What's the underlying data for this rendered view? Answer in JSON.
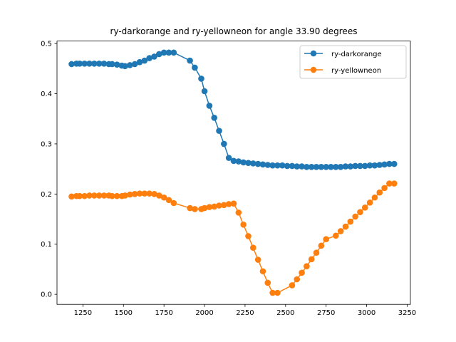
{
  "chart_data": {
    "type": "line",
    "title": "ry-darkorange and ry-yellowneon for angle 33.90 degrees",
    "xlabel": "",
    "ylabel": "",
    "xlim": [
      1090,
      3270
    ],
    "ylim": [
      -0.02,
      0.505
    ],
    "xticks": [
      1250,
      1500,
      1750,
      2000,
      2250,
      2500,
      2750,
      3000,
      3250
    ],
    "yticks": [
      0.0,
      0.1,
      0.2,
      0.3,
      0.4,
      0.5
    ],
    "grid": false,
    "legend": "top-right",
    "series": [
      {
        "name": "ry-darkorange",
        "color": "#1f77b4",
        "x": [
          1180,
          1210,
          1230,
          1260,
          1290,
          1320,
          1350,
          1380,
          1410,
          1430,
          1460,
          1490,
          1510,
          1540,
          1570,
          1600,
          1630,
          1660,
          1690,
          1720,
          1750,
          1780,
          1810,
          1910,
          1940,
          1980,
          2000,
          2030,
          2060,
          2090,
          2120,
          2150,
          2180,
          2210,
          2240,
          2270,
          2300,
          2330,
          2360,
          2390,
          2420,
          2450,
          2480,
          2510,
          2540,
          2570,
          2600,
          2630,
          2660,
          2690,
          2720,
          2750,
          2780,
          2810,
          2840,
          2870,
          2900,
          2930,
          2960,
          2990,
          3020,
          3050,
          3080,
          3110,
          3140,
          3170
        ],
        "y": [
          0.459,
          0.46,
          0.46,
          0.46,
          0.46,
          0.46,
          0.46,
          0.46,
          0.459,
          0.459,
          0.458,
          0.456,
          0.455,
          0.457,
          0.459,
          0.463,
          0.466,
          0.471,
          0.474,
          0.479,
          0.482,
          0.482,
          0.482,
          0.466,
          0.452,
          0.43,
          0.405,
          0.376,
          0.352,
          0.326,
          0.3,
          0.272,
          0.266,
          0.265,
          0.263,
          0.262,
          0.261,
          0.26,
          0.259,
          0.258,
          0.257,
          0.257,
          0.257,
          0.256,
          0.256,
          0.255,
          0.255,
          0.254,
          0.254,
          0.254,
          0.254,
          0.254,
          0.254,
          0.254,
          0.254,
          0.255,
          0.255,
          0.256,
          0.256,
          0.256,
          0.257,
          0.257,
          0.258,
          0.259,
          0.26,
          0.26
        ]
      },
      {
        "name": "ry-yellowneon",
        "color": "#ff7f0e",
        "x": [
          1180,
          1210,
          1230,
          1260,
          1290,
          1320,
          1350,
          1380,
          1410,
          1430,
          1460,
          1490,
          1510,
          1540,
          1570,
          1600,
          1630,
          1660,
          1690,
          1720,
          1750,
          1780,
          1810,
          1910,
          1940,
          1980,
          2000,
          2030,
          2060,
          2090,
          2120,
          2150,
          2180,
          2210,
          2240,
          2270,
          2300,
          2330,
          2360,
          2390,
          2420,
          2450,
          2540,
          2570,
          2600,
          2630,
          2660,
          2690,
          2720,
          2750,
          2810,
          2840,
          2870,
          2900,
          2930,
          2960,
          2990,
          3020,
          3050,
          3080,
          3110,
          3140,
          3170
        ],
        "y": [
          0.195,
          0.196,
          0.196,
          0.196,
          0.197,
          0.197,
          0.197,
          0.197,
          0.197,
          0.196,
          0.196,
          0.196,
          0.197,
          0.199,
          0.2,
          0.201,
          0.201,
          0.201,
          0.2,
          0.197,
          0.193,
          0.188,
          0.182,
          0.172,
          0.17,
          0.17,
          0.172,
          0.174,
          0.175,
          0.177,
          0.178,
          0.18,
          0.181,
          0.163,
          0.139,
          0.116,
          0.093,
          0.069,
          0.046,
          0.023,
          0.003,
          0.003,
          0.018,
          0.03,
          0.043,
          0.056,
          0.07,
          0.083,
          0.097,
          0.11,
          0.117,
          0.126,
          0.135,
          0.145,
          0.155,
          0.164,
          0.173,
          0.183,
          0.193,
          0.203,
          0.212,
          0.221,
          0.221
        ]
      }
    ]
  }
}
